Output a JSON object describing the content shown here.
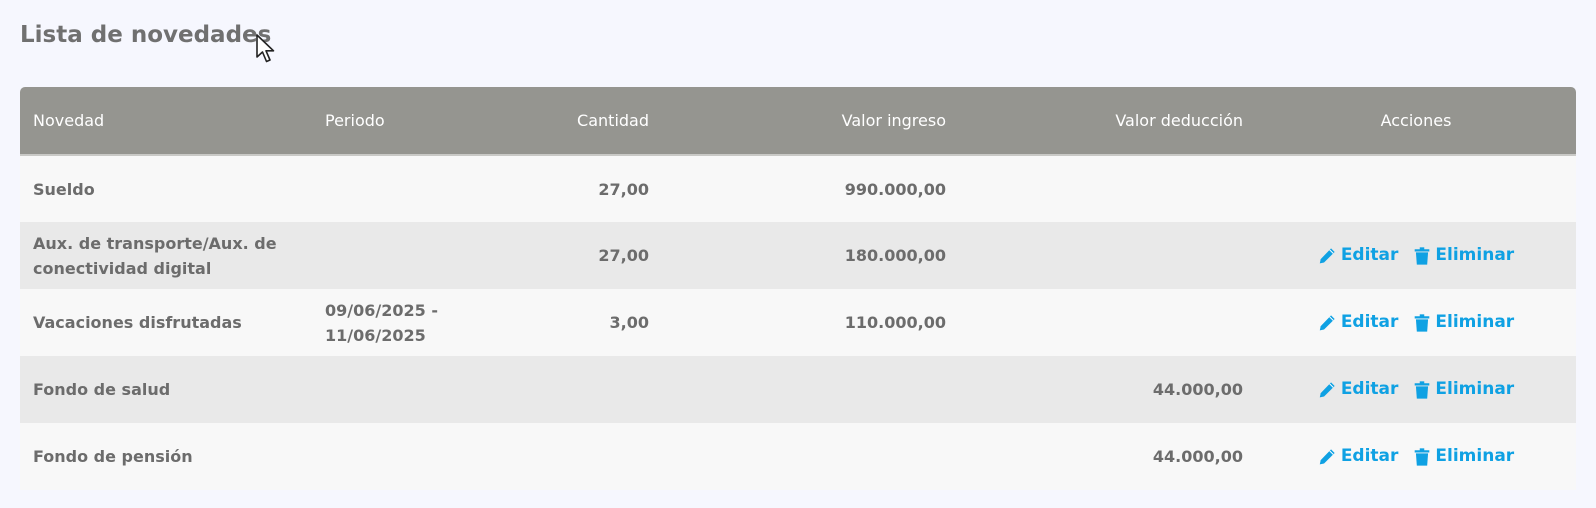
{
  "page": {
    "title": "Lista de novedades"
  },
  "table": {
    "columns": [
      "Novedad",
      "Periodo",
      "Cantidad",
      "Valor ingreso",
      "Valor deducción",
      "Acciones"
    ],
    "rows": [
      {
        "novedad": "Sueldo",
        "periodo": "",
        "cantidad": "27,00",
        "valor_ingreso": "990.000,00",
        "valor_deduccion": "",
        "has_actions": false
      },
      {
        "novedad": "Aux. de transporte/Aux. de conectividad digital",
        "periodo": "",
        "cantidad": "27,00",
        "valor_ingreso": "180.000,00",
        "valor_deduccion": "",
        "has_actions": true
      },
      {
        "novedad": "Vacaciones disfrutadas",
        "periodo": "09/06/2025 - 11/06/2025",
        "cantidad": "3,00",
        "valor_ingreso": "110.000,00",
        "valor_deduccion": "",
        "has_actions": true
      },
      {
        "novedad": "Fondo de salud",
        "periodo": "",
        "cantidad": "",
        "valor_ingreso": "",
        "valor_deduccion": "44.000,00",
        "has_actions": true
      },
      {
        "novedad": "Fondo de pensión",
        "periodo": "",
        "cantidad": "",
        "valor_ingreso": "",
        "valor_deduccion": "44.000,00",
        "has_actions": true
      }
    ],
    "actions": {
      "edit_label": "Editar",
      "delete_label": "Eliminar"
    }
  },
  "colors": {
    "header_bg": "#959590",
    "link": "#0fa1e3",
    "text": "#6c6c6c"
  },
  "icons": {
    "edit": "pencil-icon",
    "delete": "trash-icon",
    "cursor": "mouse-pointer-icon"
  }
}
